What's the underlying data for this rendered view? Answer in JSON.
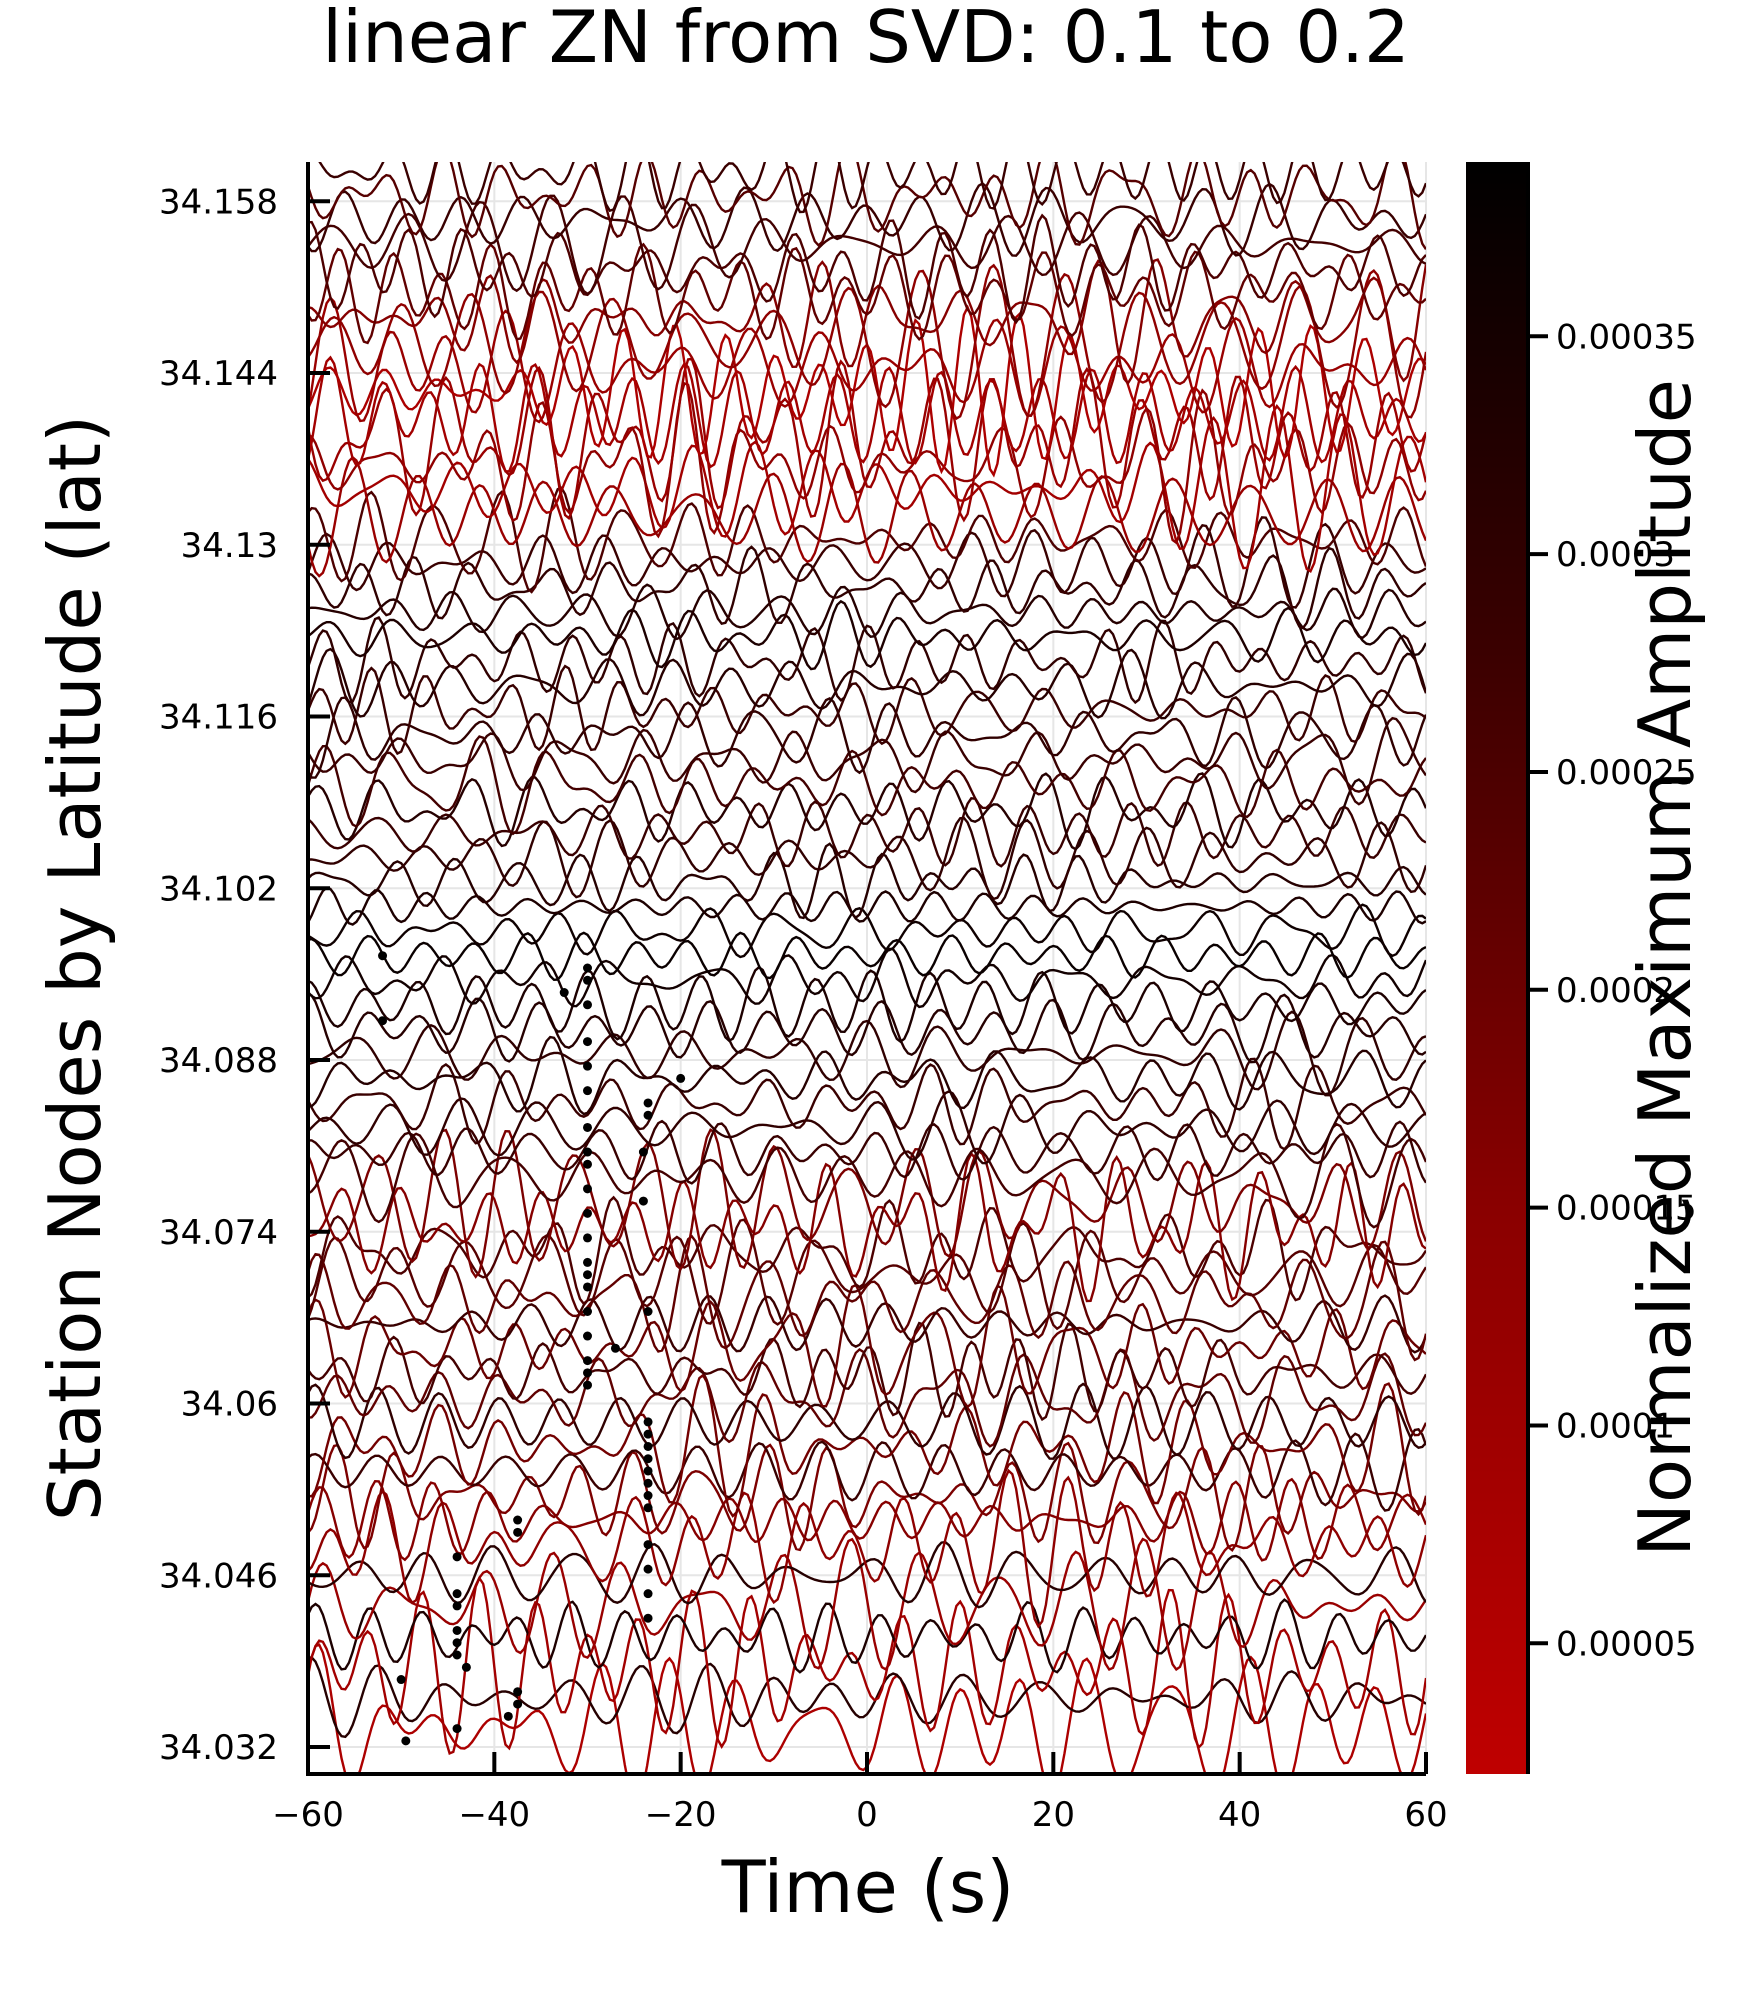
{
  "chart_data": {
    "type": "line",
    "title": "linear ZN from SVD: 0.1 to 0.2",
    "xlabel": "Time (s)",
    "ylabel": "Station Nodes by Latitude (lat)",
    "xlim": [
      -60,
      60
    ],
    "ylim": [
      34.0298,
      34.1612
    ],
    "xticks": [
      -60,
      -40,
      -20,
      0,
      20,
      40,
      60
    ],
    "xtick_labels": [
      "−60",
      "−40",
      "−20",
      "0",
      "20",
      "40",
      "60"
    ],
    "yticks": [
      34.032,
      34.046,
      34.06,
      34.074,
      34.088,
      34.102,
      34.116,
      34.13,
      34.144,
      34.158
    ],
    "ytick_labels": [
      "34.032",
      "34.046",
      "34.06",
      "34.074",
      "34.088",
      "34.102",
      "34.116",
      "34.13",
      "34.144",
      "34.158"
    ],
    "grid": true,
    "legend": "none",
    "series_description": "waveform traces, one per station node, offset by latitude",
    "trace_latitudes": [
      34.0335,
      34.036,
      34.0385,
      34.041,
      34.0435,
      34.046,
      34.0485,
      34.0505,
      34.0525,
      34.0545,
      34.0565,
      34.0585,
      34.0605,
      34.0625,
      34.0645,
      34.0665,
      34.0685,
      34.0705,
      34.0725,
      34.0745,
      34.0765,
      34.0785,
      34.0805,
      34.0825,
      34.0845,
      34.0865,
      34.0885,
      34.0905,
      34.0925,
      34.0945,
      34.0965,
      34.0985,
      34.1005,
      34.1025,
      34.1045,
      34.1065,
      34.1085,
      34.1105,
      34.1125,
      34.1145,
      34.1165,
      34.1185,
      34.1205,
      34.1225,
      34.1245,
      34.1265,
      34.1285,
      34.1305,
      34.1325,
      34.1345,
      34.1365,
      34.1385,
      34.1405,
      34.1425,
      34.1445,
      34.1465,
      34.1485,
      34.1505,
      34.1525,
      34.1545,
      34.1565,
      34.1585,
      34.1605
    ],
    "trace_amplitude_norm": [
      0.9,
      0.2,
      0.85,
      0.15,
      0.8,
      0.2,
      0.75,
      0.7,
      0.65,
      0.3,
      0.6,
      0.25,
      0.5,
      0.35,
      0.55,
      0.3,
      0.5,
      0.45,
      0.4,
      0.7,
      0.65,
      0.35,
      0.3,
      0.25,
      0.3,
      0.2,
      0.25,
      0.2,
      0.15,
      0.1,
      0.05,
      0.08,
      0.15,
      0.2,
      0.25,
      0.3,
      0.2,
      0.35,
      0.3,
      0.25,
      0.3,
      0.2,
      0.25,
      0.15,
      0.2,
      0.25,
      0.3,
      0.4,
      0.8,
      0.85,
      0.75,
      0.8,
      0.85,
      0.9,
      0.8,
      0.75,
      0.7,
      0.5,
      0.4,
      0.35,
      0.3,
      0.45,
      0.3
    ],
    "picks": [
      {
        "t": -52,
        "lat": 34.0965
      },
      {
        "t": -52,
        "lat": 34.0912
      },
      {
        "t": -32.5,
        "lat": 34.0935
      },
      {
        "t": -30,
        "lat": 34.0955
      },
      {
        "t": -30,
        "lat": 34.0945
      },
      {
        "t": -30,
        "lat": 34.0925
      },
      {
        "t": -30,
        "lat": 34.0895
      },
      {
        "t": -30,
        "lat": 34.0875
      },
      {
        "t": -30,
        "lat": 34.0855
      },
      {
        "t": -30,
        "lat": 34.0825
      },
      {
        "t": -30,
        "lat": 34.0805
      },
      {
        "t": -30,
        "lat": 34.0795
      },
      {
        "t": -30,
        "lat": 34.0775
      },
      {
        "t": -30,
        "lat": 34.0755
      },
      {
        "t": -30,
        "lat": 34.0735
      },
      {
        "t": -30,
        "lat": 34.0715
      },
      {
        "t": -30,
        "lat": 34.0705
      },
      {
        "t": -30,
        "lat": 34.0695
      },
      {
        "t": -30,
        "lat": 34.0675
      },
      {
        "t": -30,
        "lat": 34.0655
      },
      {
        "t": -30,
        "lat": 34.0635
      },
      {
        "t": -30,
        "lat": 34.0625
      },
      {
        "t": -30,
        "lat": 34.0615
      },
      {
        "t": -27,
        "lat": 34.0645
      },
      {
        "t": -23.5,
        "lat": 34.0845
      },
      {
        "t": -23.5,
        "lat": 34.0835
      },
      {
        "t": -24,
        "lat": 34.0805
      },
      {
        "t": -24,
        "lat": 34.0765
      },
      {
        "t": -23.5,
        "lat": 34.0675
      },
      {
        "t": -20,
        "lat": 34.0865
      },
      {
        "t": -23.5,
        "lat": 34.0585
      },
      {
        "t": -23.5,
        "lat": 34.0575
      },
      {
        "t": -23.5,
        "lat": 34.0565
      },
      {
        "t": -23.5,
        "lat": 34.0555
      },
      {
        "t": -23.5,
        "lat": 34.0545
      },
      {
        "t": -23.5,
        "lat": 34.0535
      },
      {
        "t": -23.5,
        "lat": 34.0525
      },
      {
        "t": -23.5,
        "lat": 34.0515
      },
      {
        "t": -23.5,
        "lat": 34.0485
      },
      {
        "t": -23.5,
        "lat": 34.0465
      },
      {
        "t": -23.5,
        "lat": 34.0445
      },
      {
        "t": -23.5,
        "lat": 34.0425
      },
      {
        "t": -37.5,
        "lat": 34.0505
      },
      {
        "t": -37.5,
        "lat": 34.0495
      },
      {
        "t": -44,
        "lat": 34.0475
      },
      {
        "t": -44,
        "lat": 34.0445
      },
      {
        "t": -44,
        "lat": 34.0435
      },
      {
        "t": -44,
        "lat": 34.0415
      },
      {
        "t": -44,
        "lat": 34.0405
      },
      {
        "t": -44,
        "lat": 34.0395
      },
      {
        "t": -43,
        "lat": 34.0385
      },
      {
        "t": -50,
        "lat": 34.0375
      },
      {
        "t": -37.5,
        "lat": 34.0365
      },
      {
        "t": -37.5,
        "lat": 34.0355
      },
      {
        "t": -38.5,
        "lat": 34.0345
      },
      {
        "t": -44,
        "lat": 34.0335
      },
      {
        "t": -49.5,
        "lat": 34.0325
      }
    ],
    "colorbar": {
      "label": "Normalized Maximum Amplitude",
      "range": [
        2e-05,
        0.00039
      ],
      "ticks": [
        5e-05,
        0.0001,
        0.00015,
        0.0002,
        0.00025,
        0.0003,
        0.00035
      ],
      "tick_labels": [
        "0.00005",
        "0.0001",
        "0.00015",
        "0.0002",
        "0.00025",
        "0.0003",
        "0.00035"
      ],
      "colors": [
        "#bf0000",
        "#000000"
      ]
    }
  }
}
